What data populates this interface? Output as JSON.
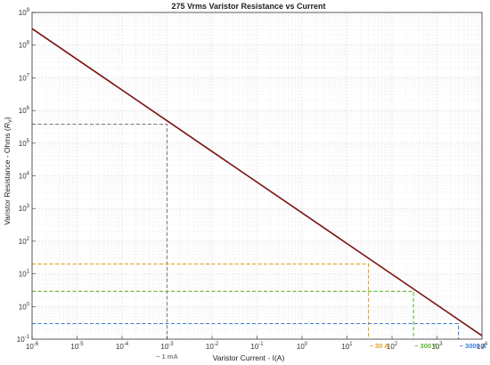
{
  "chart_data": {
    "type": "line",
    "title": "275 Vrms Varistor Resistance vs Current",
    "xlabel": "Varistor Current - I(A)",
    "ylabel": "Varistor Resistance - Ohms (",
    "ylabel_symbol": "R",
    "ylabel_subscript": "V",
    "ylabel_close": ")",
    "x_scale": "log",
    "y_scale": "log",
    "xlim": [
      1e-06,
      10000
    ],
    "ylim": [
      0.1,
      1000000000
    ],
    "x_ticks": [
      1e-06,
      1e-05,
      0.0001,
      0.001,
      0.01,
      0.1,
      1,
      10,
      100,
      1000,
      10000
    ],
    "x_tick_exponents": [
      "-6",
      "-5",
      "-4",
      "-3",
      "-2",
      "-1",
      "0",
      "1",
      "2",
      "3",
      "4"
    ],
    "y_ticks": [
      0.1,
      1,
      10,
      100,
      1000,
      10000,
      100000,
      1000000,
      10000000,
      100000000,
      1000000000
    ],
    "y_tick_exponents": [
      "-1",
      "0",
      "1",
      "2",
      "3",
      "4",
      "5",
      "6",
      "7",
      "8",
      "9"
    ],
    "tick_base": "10",
    "grid": true,
    "series": [
      {
        "color": "#7b0f0f",
        "x": [
          1e-06,
          10000
        ],
        "y": [
          320000000,
          0.128
        ]
      }
    ],
    "reference_lines": [
      {
        "x": 0.001,
        "y": 380000,
        "color": "#808080",
        "label": "~ 1 mA"
      },
      {
        "x": 30,
        "y": 20,
        "color": "#e6a020",
        "label": "~ 30 A"
      },
      {
        "x": 300,
        "y": 2.9,
        "color": "#5cb82a",
        "label": "~ 300 A"
      },
      {
        "x": 3000,
        "y": 0.3,
        "color": "#3b7fd6",
        "label": "~ 3000 A"
      }
    ]
  }
}
